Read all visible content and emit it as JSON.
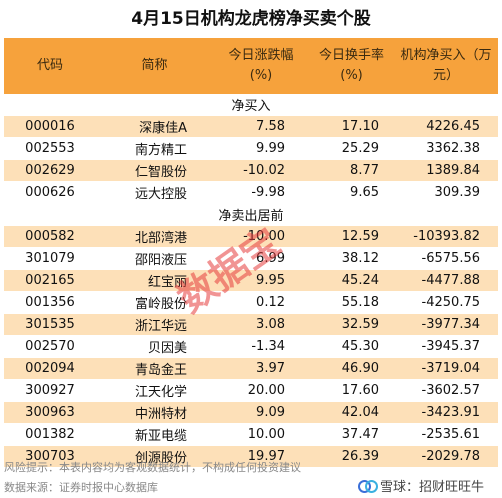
{
  "title": "4月15日机构龙虎榜净买卖个股",
  "headers": {
    "code": "代码",
    "name": "简称",
    "change_line1": "今日涨跌幅",
    "change_line2": "(%)",
    "turnover_line1": "今日换手率",
    "turnover_line2": "(%)",
    "net_line1": "机构净买入（万",
    "net_line2": "元）"
  },
  "sections": [
    {
      "label": "净买入",
      "rows": [
        {
          "code": "000016",
          "name": "深康佳A",
          "change": "7.58",
          "turnover": "17.10",
          "net": "4226.45"
        },
        {
          "code": "002553",
          "name": "南方精工",
          "change": "9.99",
          "turnover": "25.29",
          "net": "3362.38"
        },
        {
          "code": "002629",
          "name": "仁智股份",
          "change": "-10.02",
          "turnover": "8.77",
          "net": "1389.84"
        },
        {
          "code": "000626",
          "name": "远大控股",
          "change": "-9.98",
          "turnover": "9.65",
          "net": "309.39"
        }
      ]
    },
    {
      "label": "净卖出居前",
      "rows": [
        {
          "code": "000582",
          "name": "北部湾港",
          "change": "-10.00",
          "turnover": "12.59",
          "net": "-10393.82"
        },
        {
          "code": "301079",
          "name": "邵阳液压",
          "change": "6.99",
          "turnover": "38.12",
          "net": "-6575.56"
        },
        {
          "code": "002165",
          "name": "红宝丽",
          "change": "9.95",
          "turnover": "45.24",
          "net": "-4477.88"
        },
        {
          "code": "001356",
          "name": "富岭股份",
          "change": "0.12",
          "turnover": "55.18",
          "net": "-4250.75"
        },
        {
          "code": "301535",
          "name": "浙江华远",
          "change": "3.08",
          "turnover": "32.59",
          "net": "-3977.34"
        },
        {
          "code": "002570",
          "name": "贝因美",
          "change": "-1.34",
          "turnover": "45.30",
          "net": "-3945.37"
        },
        {
          "code": "002094",
          "name": "青岛金王",
          "change": "3.97",
          "turnover": "46.90",
          "net": "-3719.04"
        },
        {
          "code": "300927",
          "name": "江天化学",
          "change": "20.00",
          "turnover": "17.60",
          "net": "-3602.57"
        },
        {
          "code": "300963",
          "name": "中洲特材",
          "change": "9.09",
          "turnover": "42.04",
          "net": "-3423.91"
        },
        {
          "code": "001382",
          "name": "新亚电缆",
          "change": "10.00",
          "turnover": "37.47",
          "net": "-2535.61"
        },
        {
          "code": "300703",
          "name": "创源股份",
          "change": "19.97",
          "turnover": "26.39",
          "net": "-2029.78"
        }
      ]
    }
  ],
  "watermark": "数据宝",
  "footer": {
    "risk": "风险提示：本表内容均为客观数据统计，不构成任何投资建议",
    "source": "数据来源：证券时报中心数据库",
    "brand": "雪球：招财旺旺牛"
  }
}
